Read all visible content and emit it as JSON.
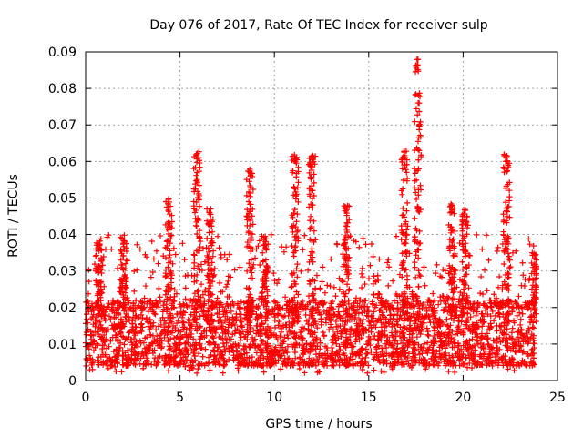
{
  "chart_data": {
    "type": "scatter",
    "title": "Day 076 of 2017, Rate Of TEC Index for receiver sulp",
    "xlabel": "GPS time / hours",
    "ylabel": "ROTI / TECUs",
    "xlim": [
      0,
      25
    ],
    "ylim": [
      0,
      0.09
    ],
    "x_ticks": [
      0,
      5,
      10,
      15,
      20,
      25
    ],
    "x_tick_labels": [
      "0",
      "5",
      "10",
      "15",
      "20",
      "25"
    ],
    "y_ticks": [
      0,
      0.01,
      0.02,
      0.03,
      0.04,
      0.05,
      0.06,
      0.07,
      0.08,
      0.09
    ],
    "y_tick_labels": [
      "0",
      "0.01",
      "0.02",
      "0.03",
      "0.04",
      "0.05",
      "0.06",
      "0.07",
      "0.08",
      "0.09"
    ],
    "grid": true,
    "marker": "+",
    "color": "#ff0000",
    "series": [
      {
        "name": "ROTI",
        "x_range": [
          0,
          23.8
        ],
        "baseline_band": [
          0.004,
          0.022
        ],
        "note_peaks": "tall spikes near 4.4h, 5.9h, 8.7h, 11.1h, 12.0h, 13.8h, 17.0h, 17.6h, 22.3h",
        "peaks": [
          {
            "x": 0.7,
            "y": 0.039
          },
          {
            "x": 2.0,
            "y": 0.04
          },
          {
            "x": 4.4,
            "y": 0.05
          },
          {
            "x": 5.9,
            "y": 0.063
          },
          {
            "x": 6.6,
            "y": 0.047
          },
          {
            "x": 8.7,
            "y": 0.058
          },
          {
            "x": 9.5,
            "y": 0.04
          },
          {
            "x": 11.1,
            "y": 0.062
          },
          {
            "x": 12.0,
            "y": 0.062
          },
          {
            "x": 13.8,
            "y": 0.048
          },
          {
            "x": 16.9,
            "y": 0.063
          },
          {
            "x": 17.6,
            "y": 0.088
          },
          {
            "x": 19.4,
            "y": 0.049
          },
          {
            "x": 20.1,
            "y": 0.047
          },
          {
            "x": 22.3,
            "y": 0.062
          },
          {
            "x": 23.8,
            "y": 0.035
          }
        ]
      }
    ]
  }
}
